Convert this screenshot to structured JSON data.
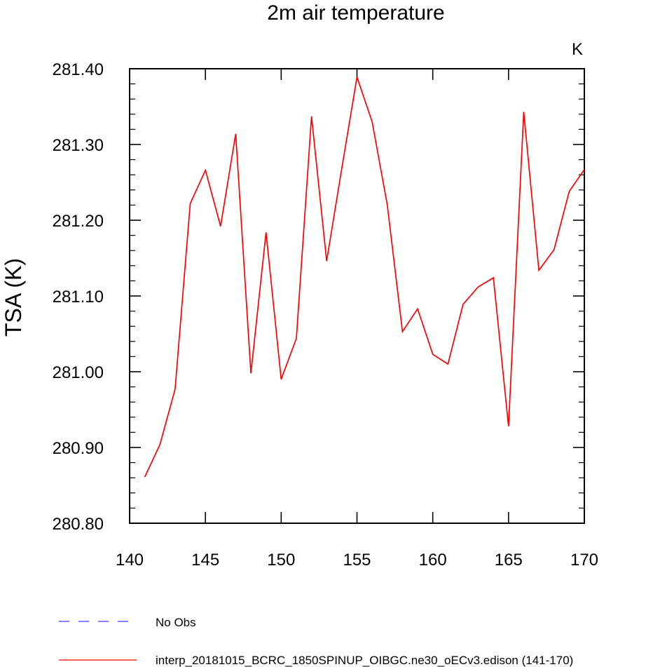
{
  "chart_data": {
    "type": "line",
    "title": "2m air temperature",
    "units_label": "K",
    "ylabel": "TSA  (K)",
    "xlabel": "",
    "xlim": [
      140,
      170
    ],
    "ylim": [
      280.8,
      281.4
    ],
    "x_ticks": [
      140,
      145,
      150,
      155,
      160,
      165,
      170
    ],
    "y_ticks": [
      "280.80",
      "280.90",
      "281.00",
      "281.10",
      "281.20",
      "281.30",
      "281.40"
    ],
    "grid": false,
    "legend_position": "bottom",
    "series": [
      {
        "name": "interp_20181015_BCRC_1850SPINUP_OIBGC.ne30_oECv3.edison (141-170)",
        "color": "#ff0000",
        "line_style": "solid",
        "x": [
          141,
          142,
          143,
          144,
          145,
          146,
          147,
          148,
          149,
          150,
          151,
          152,
          153,
          154,
          155,
          156,
          157,
          158,
          159,
          160,
          161,
          162,
          163,
          164,
          165,
          166,
          167,
          168,
          169,
          170
        ],
        "y": [
          280.861,
          280.904,
          280.977,
          281.222,
          281.266,
          281.192,
          281.314,
          280.998,
          281.184,
          280.99,
          281.044,
          281.337,
          281.146,
          281.269,
          281.389,
          281.33,
          281.22,
          281.053,
          281.083,
          281.023,
          281.01,
          281.089,
          281.112,
          281.124,
          280.928,
          281.343,
          281.134,
          281.161,
          281.238,
          281.267
        ]
      }
    ],
    "legend": [
      {
        "label": "No Obs",
        "color": "#3a3aff",
        "line_style": "dashed"
      },
      {
        "label": "interp_20181015_BCRC_1850SPINUP_OIBGC.ne30_oECv3.edison (141-170)",
        "color": "#ff0000",
        "line_style": "solid"
      }
    ]
  }
}
